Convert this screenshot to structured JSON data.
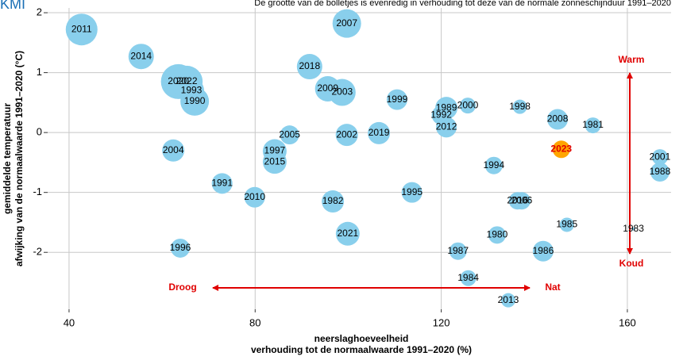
{
  "chart_data": {
    "type": "scatter",
    "logo": "KMI",
    "subtitle": "De grootte van de bolletjes is evenredig in verhouding tot deze van de normale zonneschijnduur 1991–2020",
    "x_label": [
      "neerslaghoeveelheid",
      "verhouding tot de normaalwaarde 1991–2020 (%)"
    ],
    "y_label": [
      "gemiddelde temperatuur",
      "afwijking van de normaalwaarde 1991–2020 (°C)"
    ],
    "annotations": {
      "warm": "Warm",
      "koud": "Koud",
      "droog": "Droog",
      "nat": "Nat"
    },
    "xlim": [
      35.4,
      169.4
    ],
    "ylim": [
      -2.95,
      2.08
    ],
    "xticks": [
      40,
      80,
      120,
      160
    ],
    "yticks": [
      -2,
      -1,
      0,
      1,
      2
    ],
    "grid": true,
    "labels": [
      "2011",
      "2014",
      "2007",
      "2018",
      "2020",
      "2022",
      "1993",
      "1990",
      "2009",
      "2003",
      "1999",
      "1989",
      "1992",
      "2000",
      "1998",
      "2008",
      "1981",
      "2012",
      "2005",
      "2002",
      "2019",
      "1997",
      "2015",
      "2004",
      "2023",
      "2001",
      "1988",
      "1994",
      "1991",
      "2010",
      "1982",
      "1995",
      "2016",
      "2006",
      "1985",
      "1983",
      "1996",
      "2021",
      "1987",
      "1980",
      "1986",
      "1984",
      "2013"
    ],
    "x": [
      42.7,
      55.5,
      99.7,
      91.7,
      63.5,
      65.3,
      66.3,
      67.0,
      95.6,
      98.7,
      110.5,
      121.1,
      120.0,
      125.7,
      136.9,
      145.0,
      152.6,
      121.1,
      87.4,
      99.7,
      106.6,
      84.2,
      84.2,
      62.4,
      145.8,
      167.0,
      167.0,
      131.3,
      72.9,
      79.9,
      96.7,
      113.7,
      136.4,
      137.3,
      147.0,
      161.3,
      63.9,
      99.9,
      123.6,
      132.0,
      141.9,
      125.8,
      134.4
    ],
    "values": [
      1.72,
      1.27,
      1.82,
      1.1,
      0.85,
      0.85,
      0.7,
      0.52,
      0.73,
      0.67,
      0.55,
      0.41,
      0.29,
      0.45,
      0.43,
      0.22,
      0.12,
      0.09,
      -0.04,
      -0.04,
      -0.01,
      -0.31,
      -0.49,
      -0.3,
      -0.28,
      -0.41,
      -0.66,
      -0.55,
      -0.85,
      -1.08,
      -1.15,
      -1.0,
      -1.14,
      -1.14,
      -1.54,
      -1.61,
      -1.93,
      -1.69,
      -1.98,
      -1.71,
      -1.98,
      -2.43,
      -2.8
    ],
    "sizes": [
      120,
      96,
      108,
      96,
      132,
      120,
      96,
      108,
      96,
      102,
      78,
      84,
      72,
      60,
      54,
      78,
      60,
      78,
      72,
      84,
      84,
      90,
      90,
      84,
      66,
      60,
      72,
      66,
      78,
      78,
      84,
      78,
      66,
      66,
      54,
      12,
      72,
      90,
      66,
      66,
      78,
      60,
      54
    ],
    "colors": [
      "#89cfec",
      "#89cfec",
      "#89cfec",
      "#89cfec",
      "#89cfec",
      "#89cfec",
      "#89cfec",
      "#89cfec",
      "#89cfec",
      "#89cfec",
      "#89cfec",
      "#89cfec",
      "#89cfec",
      "#89cfec",
      "#89cfec",
      "#89cfec",
      "#89cfec",
      "#89cfec",
      "#89cfec",
      "#89cfec",
      "#89cfec",
      "#89cfec",
      "#89cfec",
      "#89cfec",
      "#ffa500",
      "#89cfec",
      "#89cfec",
      "#89cfec",
      "#89cfec",
      "#89cfec",
      "#89cfec",
      "#89cfec",
      "#89cfec",
      "#89cfec",
      "#89cfec",
      "#89cfec",
      "#89cfec",
      "#89cfec",
      "#89cfec",
      "#89cfec",
      "#89cfec",
      "#89cfec",
      "#89cfec"
    ],
    "label_colors": [
      "#000",
      "#000",
      "#000",
      "#000",
      "#000",
      "#000",
      "#000",
      "#000",
      "#000",
      "#000",
      "#000",
      "#000",
      "#000",
      "#000",
      "#000",
      "#000",
      "#000",
      "#000",
      "#000",
      "#000",
      "#000",
      "#000",
      "#000",
      "#000",
      "#e00000",
      "#000",
      "#000",
      "#000",
      "#000",
      "#000",
      "#000",
      "#000",
      "#000",
      "#000",
      "#000",
      "#000",
      "#000",
      "#000",
      "#000",
      "#000",
      "#000",
      "#000",
      "#000"
    ]
  }
}
